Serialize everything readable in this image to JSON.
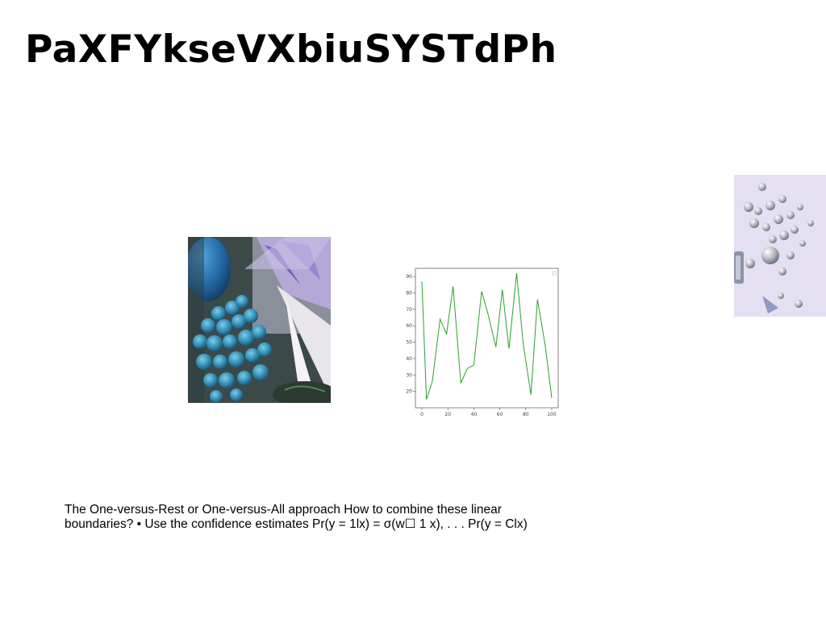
{
  "slide": {
    "title": "PaXFYkseVXbiuSYSTdPh",
    "body_text": "The One-versus-Rest or One-versus-All approach How to combine these linear boundaries? • Use the confidence estimates Pr(y = 1lx) = σ(w☐ 1 x), . . . Pr(y = Clx)"
  },
  "images": [
    {
      "name": "photo-blue-grapes",
      "content": "blue grapes with purple flowers"
    },
    {
      "name": "photo-silver-objects",
      "content": "silver round objects on lavender surface"
    }
  ],
  "chart_data": {
    "type": "line",
    "title": "",
    "xlabel": "",
    "ylabel": "",
    "xlim": [
      -5,
      105
    ],
    "ylim": [
      10,
      95
    ],
    "xticks": [
      0,
      20,
      40,
      60,
      80,
      100
    ],
    "yticks": [
      20,
      30,
      40,
      50,
      60,
      70,
      80,
      90
    ],
    "grid": false,
    "line_color": "#2ca02c",
    "series": [
      {
        "x": [
          0,
          3.5,
          8,
          14,
          19,
          24,
          30,
          35,
          40,
          46,
          51,
          57,
          62,
          67,
          73,
          78,
          84,
          89,
          95,
          100
        ],
        "y": [
          87,
          15,
          26,
          64,
          55,
          84,
          25,
          34,
          36,
          81,
          67,
          47,
          82,
          46,
          92,
          49,
          18,
          76,
          48,
          16
        ]
      }
    ]
  }
}
